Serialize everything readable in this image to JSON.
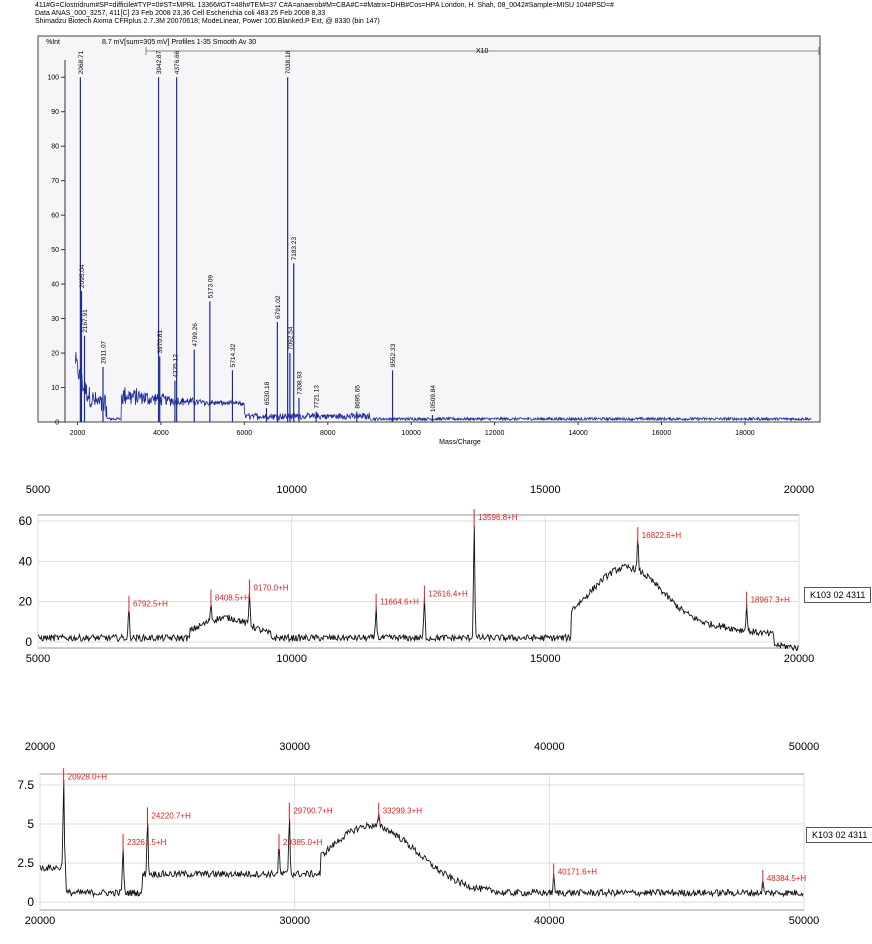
{
  "header": {
    "line1": "411#G=Clostridrum#SP=difficile#TYP=0#ST=MPRL 13366#GT=48h#TEM=37 C#A=anaerob#M=CBA#C=#Matrix=DHB#Cos=HPA London, H. Shah, 08_0042#Sample=MISU 104#PSD=#",
    "line2": "Data ANAS_000_3257, 411[C] 23 Feb 2008 23,36 Cell Escherichia coli 483 25 Feb 2008 8,33",
    "line3": "Shimadzu Biotech Axima CFRplus 2.7.3M 20070618; ModeLinear, Power 100.Blanked.P Ext, @ 8330 (bin 147)"
  },
  "chart_data": [
    {
      "type": "line",
      "title": "8.7 mV[sum=305 mV] Profiles 1-35 Smooth Av 30",
      "ylabel": "%Int",
      "xlabel": "Mass/Charge",
      "zoom_label": "X10",
      "xlim": [
        1700,
        19800
      ],
      "ylim": [
        0,
        105
      ],
      "xticks": [
        2000,
        4000,
        6000,
        8000,
        10000,
        12000,
        14000,
        16000,
        18000
      ],
      "yticks": [
        0,
        10,
        20,
        30,
        40,
        50,
        60,
        70,
        80,
        90,
        100
      ],
      "peaks": [
        {
          "x": 2068.71,
          "y": 100,
          "label": "2068.71"
        },
        {
          "x": 2095.04,
          "y": 38,
          "label": "2095.04"
        },
        {
          "x": 2167.91,
          "y": 25,
          "label": "2167.91"
        },
        {
          "x": 2611.07,
          "y": 16,
          "label": "2611.07"
        },
        {
          "x": 3942.87,
          "y": 100,
          "label": "3942.87"
        },
        {
          "x": 3970.81,
          "y": 19,
          "label": "3970.81"
        },
        {
          "x": 4335.12,
          "y": 12,
          "label": "4335.12"
        },
        {
          "x": 4376.66,
          "y": 100,
          "label": "4376.66"
        },
        {
          "x": 4799.26,
          "y": 21,
          "label": "4799.26"
        },
        {
          "x": 5173.09,
          "y": 35,
          "label": "5173.09"
        },
        {
          "x": 5714.32,
          "y": 15,
          "label": "5714.32"
        },
        {
          "x": 6530.18,
          "y": 4,
          "label": "6530.18"
        },
        {
          "x": 6791.02,
          "y": 29,
          "label": "6791.02"
        },
        {
          "x": 7038.18,
          "y": 100,
          "label": "7038.18"
        },
        {
          "x": 7092.54,
          "y": 20,
          "label": "7092.54"
        },
        {
          "x": 7183.23,
          "y": 46,
          "label": "7183.23"
        },
        {
          "x": 7308.93,
          "y": 7,
          "label": "7308.93"
        },
        {
          "x": 7721.13,
          "y": 3,
          "label": "7721.13"
        },
        {
          "x": 8695.65,
          "y": 3,
          "label": "8695.65"
        },
        {
          "x": 9552.33,
          "y": 15,
          "label": "9552.33"
        },
        {
          "x": 10509.84,
          "y": 2,
          "label": "10509.84"
        }
      ]
    },
    {
      "type": "line",
      "xlim": [
        5000,
        20000
      ],
      "ylim": [
        -3,
        63
      ],
      "xticks": [
        5000,
        10000,
        15000,
        20000
      ],
      "yticks": [
        0,
        20,
        40,
        60
      ],
      "side_label": "K103 02 4311",
      "peaks": [
        {
          "x": 6792.5,
          "y": 17,
          "label": "6792.5+H"
        },
        {
          "x": 8408.5,
          "y": 20,
          "label": "8408.5+H"
        },
        {
          "x": 9170.0,
          "y": 25,
          "label": "9170.0+H"
        },
        {
          "x": 11664.6,
          "y": 18,
          "label": "11664.6+H"
        },
        {
          "x": 12616.4,
          "y": 22,
          "label": "12616.4+H"
        },
        {
          "x": 13596.8,
          "y": 60,
          "label": "13596.8+H"
        },
        {
          "x": 16822.6,
          "y": 51,
          "label": "16822.6+H"
        },
        {
          "x": 18967.3,
          "y": 19,
          "label": "18967.3+H"
        }
      ]
    },
    {
      "type": "line",
      "xlim": [
        20000,
        50000
      ],
      "ylim": [
        -0.5,
        8.2
      ],
      "xticks": [
        20000,
        30000,
        40000,
        50000
      ],
      "yticks": [
        0,
        2.5,
        5,
        7.5
      ],
      "side_label": "K103 02 4311",
      "peaks": [
        {
          "x": 20928.0,
          "y": 7.8,
          "label": "20928.0+H"
        },
        {
          "x": 23261.5,
          "y": 3.6,
          "label": "23261.5+H"
        },
        {
          "x": 24220.7,
          "y": 5.3,
          "label": "24220.7+H"
        },
        {
          "x": 29385.0,
          "y": 3.6,
          "label": "29385.0+H"
        },
        {
          "x": 29790.7,
          "y": 5.6,
          "label": "29790.7+H"
        },
        {
          "x": 33299.3,
          "y": 5.6,
          "label": "33299.3+H"
        },
        {
          "x": 40171.6,
          "y": 1.7,
          "label": "40171.6+H"
        },
        {
          "x": 48384.5,
          "y": 1.3,
          "label": "48384.5+H"
        }
      ]
    }
  ]
}
